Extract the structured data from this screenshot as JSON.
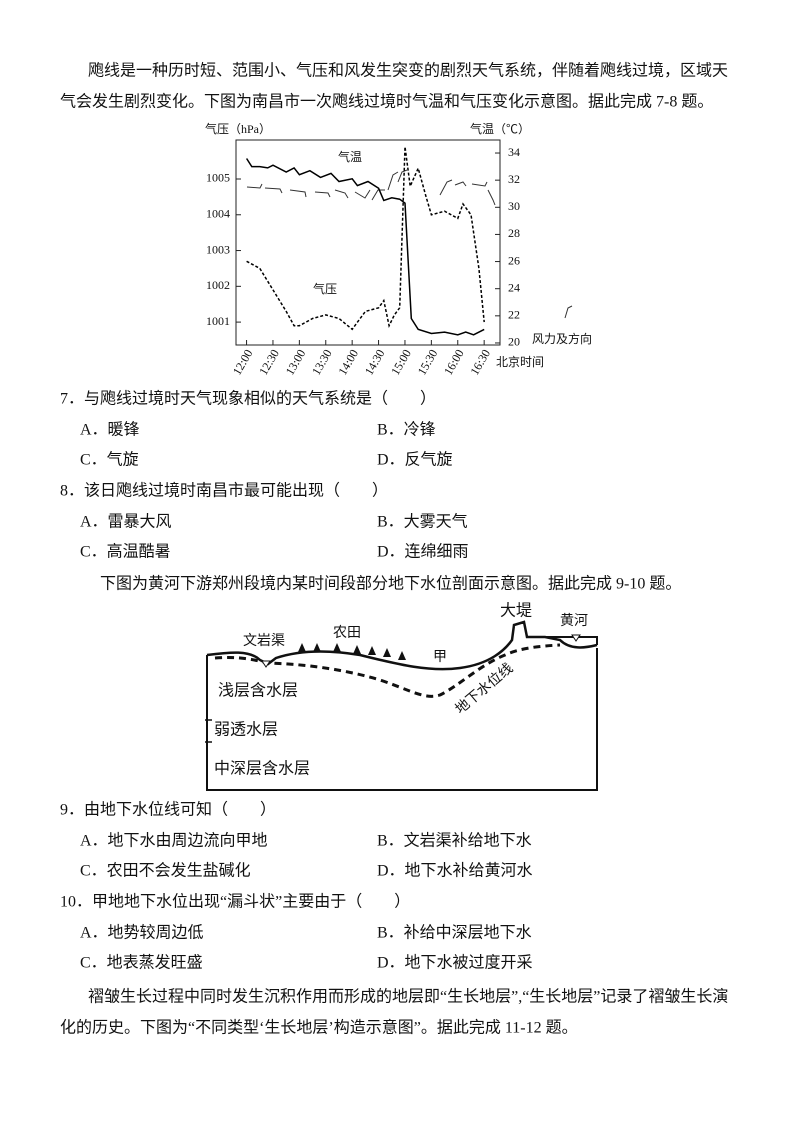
{
  "intro_7_8": {
    "lines": [
      "飑线是一种历时短、范围小、气压和风发生突变的剧烈天气系统，伴随着飑线过境，区域天",
      "气会发生剧烈变化。下图为南昌市一次飑线过境时气温和气压变化示意图。据此完成 7-8 题。"
    ]
  },
  "chart_data": {
    "type": "line",
    "y_label": "气压（hPa）",
    "y2_label": "气温（℃）",
    "x_label": "北京时间",
    "wind_label": "风力及方向",
    "xlim": [
      11.8,
      16.8
    ],
    "xticks": [
      {
        "value": 12,
        "label": "12:00"
      },
      {
        "value": 12.5,
        "label": "12:30"
      },
      {
        "value": 13,
        "label": "13:00"
      },
      {
        "value": 13.5,
        "label": "13:30"
      },
      {
        "value": 14,
        "label": "14:00"
      },
      {
        "value": 14.5,
        "label": "14:30"
      },
      {
        "value": 15,
        "label": "15:00"
      },
      {
        "value": 15.5,
        "label": "15:30"
      },
      {
        "value": 16,
        "label": "16:00"
      },
      {
        "value": 16.5,
        "label": "16:30"
      }
    ],
    "ylim": [
      1000.36,
      1006.09
    ],
    "yticks": [
      1001,
      1002,
      1003,
      1004,
      1005
    ],
    "y2lim": [
      19.85,
      34.96
    ],
    "y2ticks": [
      20,
      22,
      24,
      26,
      28,
      30,
      32,
      34
    ],
    "series": [
      {
        "name": "气温",
        "axis": "y2",
        "color": "#000000",
        "dashed": false,
        "x": [
          12,
          12.1,
          12.25,
          12.4,
          12.5,
          12.75,
          12.9,
          13,
          13.2,
          13.4,
          13.6,
          13.75,
          14,
          14.1,
          14.3,
          14.5,
          14.6,
          14.75,
          14.9,
          15,
          15.12,
          15.25,
          15.5,
          15.75,
          16,
          16.15,
          16.3,
          16.5
        ],
        "values": [
          33.6,
          33,
          33,
          32.9,
          33.1,
          32.6,
          32.9,
          32.4,
          32.7,
          32.2,
          32.5,
          31.9,
          32.1,
          31.6,
          31.9,
          31.4,
          30.5,
          30.7,
          30.6,
          30.3,
          21.8,
          21,
          20.7,
          20.8,
          20.6,
          20.8,
          20.6,
          21
        ]
      },
      {
        "name": "气压",
        "axis": "y",
        "color": "#000000",
        "dashed": true,
        "x": [
          12,
          12.25,
          12.5,
          12.75,
          12.9,
          13,
          13.25,
          13.5,
          13.75,
          14,
          14.25,
          14.5,
          14.6,
          14.7,
          14.8,
          14.9,
          15,
          15.1,
          15.25,
          15.4,
          15.5,
          15.75,
          16,
          16.1,
          16.25,
          16.4,
          16.5
        ],
        "values": [
          1002.7,
          1002.5,
          1001.9,
          1001.3,
          1000.9,
          1000.9,
          1001.1,
          1001.2,
          1001.1,
          1000.8,
          1001.3,
          1001.4,
          1001.6,
          1000.9,
          1001.2,
          1001.4,
          1005.9,
          1004.8,
          1005.3,
          1004.5,
          1004,
          1004.1,
          1003.9,
          1004.3,
          1004,
          1002.5,
          1001
        ]
      }
    ]
  },
  "questions_7_8": [
    {
      "stem": "7．与飑线过境时天气现象相似的天气系统是（　　）",
      "options": [
        "A．暖锋",
        "B．冷锋",
        "C．气旋",
        "D．反气旋"
      ]
    },
    {
      "stem": "8．该日飑线过境时南昌市最可能出现（　　）",
      "options": [
        "A．雷暴大风",
        "B．大雾天气",
        "C．高温酷暑",
        "D．连绵细雨"
      ]
    }
  ],
  "intro_9_10": {
    "lines": [
      "下图为黄河下游郑州段境内某时间段部分地下水位剖面示意图。据此完成 9-10 题。"
    ]
  },
  "diagram": {
    "labels": {
      "dike": "大堤",
      "river": "黄河",
      "canal": "文岩渠",
      "farmland": "农田",
      "jia": "甲",
      "water_table": "地下水位线",
      "shallow": "浅层含水层",
      "weak": "弱透水层",
      "deep": "中深层含水层"
    }
  },
  "questions_9_10": [
    {
      "stem": "9．由地下水位线可知（　　）",
      "options": [
        "A．地下水由周边流向甲地",
        "B．文岩渠补给地下水",
        "C．农田不会发生盐碱化",
        "D．地下水补给黄河水"
      ]
    },
    {
      "stem": "10．甲地地下水位出现“漏斗状”主要由于（　　）",
      "options": [
        "A．地势较周边低",
        "B．补给中深层地下水",
        "C．地表蒸发旺盛",
        "D．地下水被过度开采"
      ]
    }
  ],
  "intro_11_12": {
    "lines": [
      "褶皱生长过程中同时发生沉积作用而形成的地层即“生长地层”,“生长地层”记录了褶皱生长演",
      "化的历史。下图为“不同类型‘生长地层’构造示意图”。据此完成 11-12 题。"
    ]
  }
}
